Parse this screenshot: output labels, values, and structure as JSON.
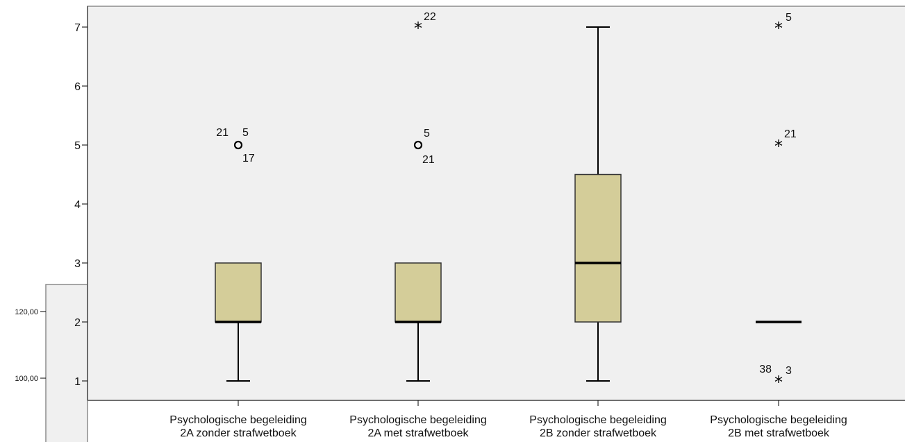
{
  "chart_data": {
    "type": "boxplot",
    "title": "",
    "xlabel": "",
    "ylabel": "",
    "ylim": [
      0.7,
      7.4
    ],
    "yticks": [
      1,
      2,
      3,
      4,
      5,
      6,
      7
    ],
    "categories": [
      [
        "Psychologische begeleiding",
        "2A zonder strafwetboek"
      ],
      [
        "Psychologische begeleiding",
        "2A met strafwetboek"
      ],
      [
        "Psychologische begeleiding",
        "2B zonder strafwetboek"
      ],
      [
        "Psychologische begeleiding",
        "2B met strafwetboek"
      ]
    ],
    "boxes": [
      {
        "min": 1,
        "q1": 2,
        "median": 2,
        "q3": 3,
        "max": 3
      },
      {
        "min": 1,
        "q1": 2,
        "median": 2,
        "q3": 3,
        "max": 3
      },
      {
        "min": 1,
        "q1": 2,
        "median": 3,
        "q3": 4.5,
        "max": 7
      },
      {
        "min": 2,
        "q1": 2,
        "median": 2,
        "q3": 2,
        "max": 2
      }
    ],
    "outliers": [
      {
        "box": 0,
        "value": 5,
        "symbol": "circle",
        "labels": [
          "21",
          "5",
          "17"
        ]
      },
      {
        "box": 1,
        "value": 7,
        "symbol": "star",
        "labels": [
          "22"
        ]
      },
      {
        "box": 1,
        "value": 5,
        "symbol": "circle",
        "labels": [
          "5",
          "21"
        ]
      },
      {
        "box": 3,
        "value": 7,
        "symbol": "star",
        "labels": [
          "5"
        ]
      },
      {
        "box": 3,
        "value": 5,
        "symbol": "star",
        "labels": [
          "21"
        ]
      },
      {
        "box": 3,
        "value": 1,
        "symbol": "star",
        "labels": [
          "38",
          "3"
        ]
      }
    ],
    "colors": {
      "box_fill": "#d4cd99",
      "plot_bg": "#f0f0f0",
      "line": "#000000",
      "frame": "#8c8c8c"
    },
    "background_chart": {
      "yticks": [
        "120,00",
        "100,00"
      ]
    }
  }
}
